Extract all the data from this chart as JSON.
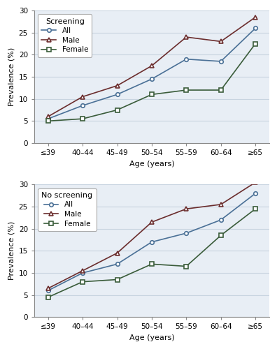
{
  "age_labels": [
    "≤39",
    "40–44",
    "45–49",
    "50–54",
    "55–59",
    "60–64",
    "≥65"
  ],
  "screening": {
    "title": "Screening",
    "all": [
      5.5,
      8.5,
      11.0,
      14.5,
      19.0,
      18.5,
      26.0
    ],
    "male": [
      6.0,
      10.5,
      13.0,
      17.5,
      24.0,
      23.0,
      28.5
    ],
    "female": [
      5.0,
      5.5,
      7.5,
      11.0,
      12.0,
      12.0,
      22.5
    ]
  },
  "no_screening": {
    "title": "No screening",
    "all": [
      6.0,
      10.0,
      12.0,
      17.0,
      19.0,
      22.0,
      28.0
    ],
    "male": [
      6.5,
      10.5,
      14.5,
      21.5,
      24.5,
      25.5,
      30.5
    ],
    "female": [
      4.5,
      8.0,
      8.5,
      12.0,
      11.5,
      18.5,
      24.5
    ]
  },
  "color_all": "#4a7096",
  "color_male": "#6b2d2d",
  "color_female": "#3a5c3a",
  "ylim": [
    0,
    30
  ],
  "yticks": [
    0,
    5,
    10,
    15,
    20,
    25,
    30
  ],
  "ylabel": "Prevalence (%)",
  "xlabel": "Age (years)",
  "grid_color": "#c8d4e0",
  "bg_color": "#e8eef5"
}
